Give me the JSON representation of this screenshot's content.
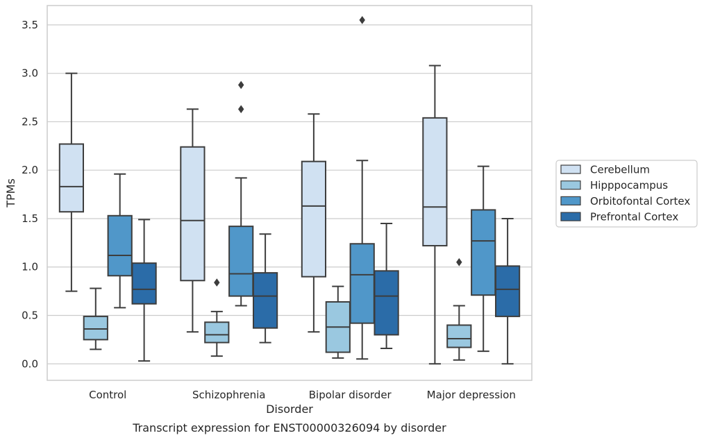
{
  "chart_data": {
    "type": "boxplot",
    "title": "",
    "caption": "Transcript expression for ENST00000326094 by disorder",
    "xlabel": "Disorder",
    "ylabel": "TPMs",
    "ylim": [
      -0.17,
      3.7
    ],
    "yticks": [
      0.0,
      0.5,
      1.0,
      1.5,
      2.0,
      2.5,
      3.0,
      3.5
    ],
    "ytick_labels": [
      "0.0",
      "0.5",
      "1.0",
      "1.5",
      "2.0",
      "2.5",
      "3.0",
      "3.5"
    ],
    "grid": "horizontal",
    "legend_position": "right",
    "categories": [
      "Control",
      "Schizophrenia",
      "Bipolar disorder",
      "Major depression"
    ],
    "series": [
      {
        "name": "Cerebellum",
        "color": "#d0e1f2",
        "boxes": [
          {
            "whislo": 0.75,
            "q1": 1.57,
            "med": 1.83,
            "q3": 2.27,
            "whishi": 3.0,
            "fliers": []
          },
          {
            "whislo": 0.33,
            "q1": 0.86,
            "med": 1.48,
            "q3": 2.24,
            "whishi": 2.63,
            "fliers": []
          },
          {
            "whislo": 0.33,
            "q1": 0.9,
            "med": 1.63,
            "q3": 2.09,
            "whishi": 2.58,
            "fliers": []
          },
          {
            "whislo": 0.0,
            "q1": 1.22,
            "med": 1.62,
            "q3": 2.54,
            "whishi": 3.08,
            "fliers": []
          }
        ]
      },
      {
        "name": "Hipppocampus",
        "color": "#9ac8e0",
        "boxes": [
          {
            "whislo": 0.15,
            "q1": 0.25,
            "med": 0.36,
            "q3": 0.49,
            "whishi": 0.78,
            "fliers": []
          },
          {
            "whislo": 0.08,
            "q1": 0.22,
            "med": 0.3,
            "q3": 0.43,
            "whishi": 0.54,
            "fliers": [
              0.84
            ]
          },
          {
            "whislo": 0.06,
            "q1": 0.12,
            "med": 0.38,
            "q3": 0.64,
            "whishi": 0.8,
            "fliers": []
          },
          {
            "whislo": 0.04,
            "q1": 0.17,
            "med": 0.26,
            "q3": 0.4,
            "whishi": 0.6,
            "fliers": [
              1.05
            ]
          }
        ]
      },
      {
        "name": "Orbitofontal Cortex",
        "color": "#5097c9",
        "boxes": [
          {
            "whislo": 0.58,
            "q1": 0.91,
            "med": 1.12,
            "q3": 1.53,
            "whishi": 1.96,
            "fliers": []
          },
          {
            "whislo": 0.6,
            "q1": 0.7,
            "med": 0.93,
            "q3": 1.42,
            "whishi": 1.92,
            "fliers": [
              2.63,
              2.88
            ]
          },
          {
            "whislo": 0.05,
            "q1": 0.42,
            "med": 0.92,
            "q3": 1.24,
            "whishi": 2.1,
            "fliers": [
              3.55
            ]
          },
          {
            "whislo": 0.13,
            "q1": 0.71,
            "med": 1.27,
            "q3": 1.59,
            "whishi": 2.04,
            "fliers": []
          }
        ]
      },
      {
        "name": "Prefrontal Cortex",
        "color": "#2b6ca8",
        "boxes": [
          {
            "whislo": 0.03,
            "q1": 0.62,
            "med": 0.77,
            "q3": 1.04,
            "whishi": 1.49,
            "fliers": []
          },
          {
            "whislo": 0.22,
            "q1": 0.37,
            "med": 0.7,
            "q3": 0.94,
            "whishi": 1.34,
            "fliers": []
          },
          {
            "whislo": 0.16,
            "q1": 0.3,
            "med": 0.7,
            "q3": 0.96,
            "whishi": 1.45,
            "fliers": []
          },
          {
            "whislo": 0.0,
            "q1": 0.49,
            "med": 0.77,
            "q3": 1.01,
            "whishi": 1.5,
            "fliers": []
          }
        ]
      }
    ]
  }
}
